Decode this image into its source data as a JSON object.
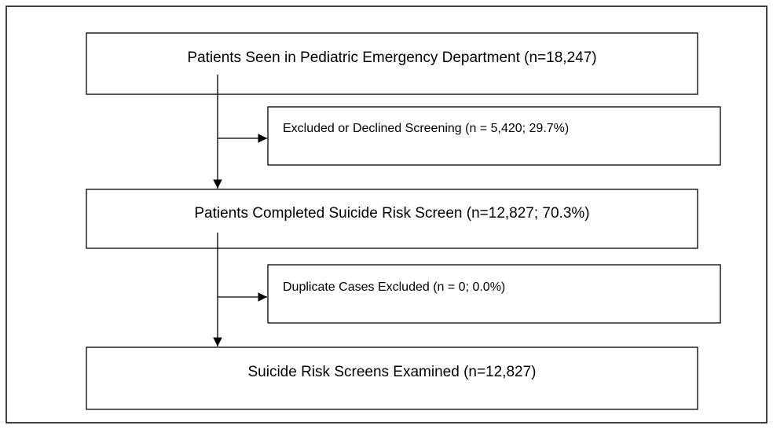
{
  "nodes": [
    {
      "label": "Patients Seen in Pediatric Emergency Department (n=18,247)"
    },
    {
      "label": "Excluded or Declined Screening (n = 5,420; 29.7%)"
    },
    {
      "label": "Patients Completed Suicide Risk Screen (n=12,827; 70.3%)"
    },
    {
      "label": "Duplicate Cases Excluded (n = 0; 0.0%)"
    },
    {
      "label": "Suicide Risk Screens Examined (n=12,827)"
    }
  ]
}
